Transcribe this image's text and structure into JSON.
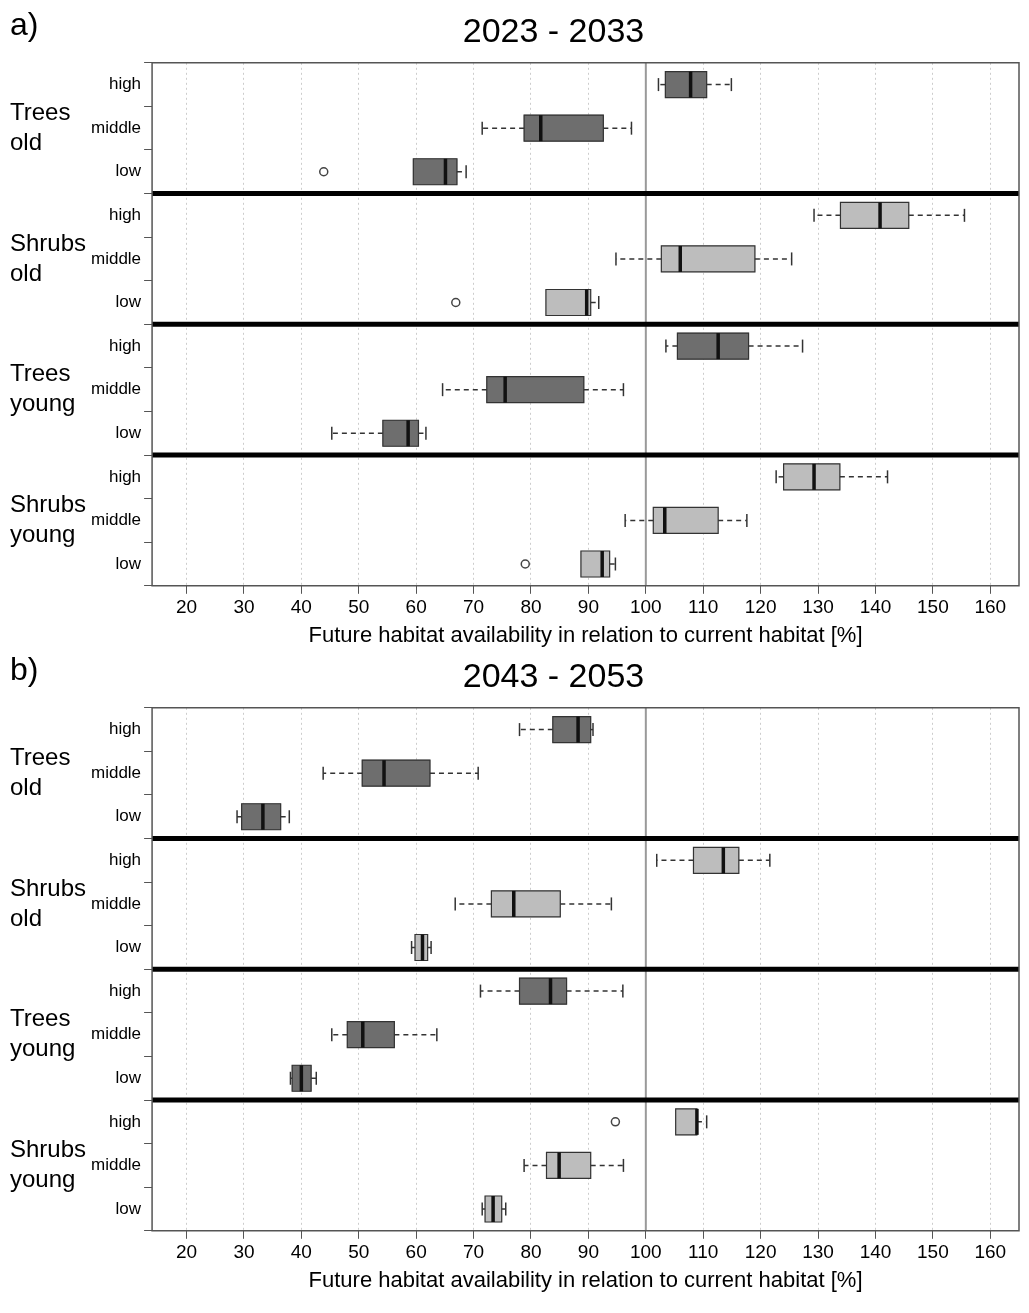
{
  "chart_data": [
    {
      "type": "box",
      "orientation": "horizontal",
      "title": "2023 - 2033",
      "xlabel": "Future habitat availability in relation to current habitat [%]",
      "annotations": [
        "a)",
        "Trees old",
        "Shrubs old",
        "Trees young",
        "Shrubs young"
      ],
      "categories": [
        "high",
        "middle",
        "low",
        "high",
        "middle",
        "low",
        "high",
        "middle",
        "low",
        "high",
        "middle",
        "low"
      ],
      "xlim": [
        14,
        165
      ],
      "xticks": [
        20,
        30,
        40,
        50,
        60,
        70,
        80,
        90,
        100,
        110,
        120,
        130,
        140,
        150,
        160
      ],
      "grid": "x",
      "legend": false,
      "ref_lines": [
        {
          "axis": "x",
          "value": 100,
          "color": "#999999"
        }
      ],
      "series": [
        {
          "color": "#6e6e6e",
          "boxes": [
            {
              "low": 102.2,
              "q1": 103.4,
              "median": 107.8,
              "q3": 110.6,
              "high": 114.9
            },
            {
              "low": 71.5,
              "q1": 78.8,
              "median": 81.7,
              "q3": 92.6,
              "high": 97.5
            },
            {
              "low": 59.5,
              "q1": 59.5,
              "median": 65.1,
              "q3": 67.1,
              "high": 68.7,
              "outliers": [
                43.9
              ]
            },
            null,
            null,
            null,
            null,
            null,
            null,
            null,
            null,
            null
          ]
        },
        {
          "color": "#bdbdbd",
          "boxes": [
            null,
            null,
            null,
            {
              "low": 129.3,
              "q1": 133.9,
              "median": 140.8,
              "q3": 145.8,
              "high": 155.5
            },
            {
              "low": 94.8,
              "q1": 102.7,
              "median": 106.0,
              "q3": 119.0,
              "high": 125.4
            },
            {
              "low": 82.6,
              "q1": 82.6,
              "median": 89.7,
              "q3": 90.4,
              "high": 91.8,
              "outliers": [
                66.9
              ]
            },
            null,
            null,
            null,
            null,
            null,
            null
          ]
        },
        {
          "color": "#6e6e6e",
          "boxes": [
            null,
            null,
            null,
            null,
            null,
            null,
            {
              "low": 103.5,
              "q1": 105.5,
              "median": 112.6,
              "q3": 117.9,
              "high": 127.3
            },
            {
              "low": 64.6,
              "q1": 72.3,
              "median": 75.5,
              "q3": 89.2,
              "high": 96.1
            },
            {
              "low": 45.3,
              "q1": 54.2,
              "median": 58.6,
              "q3": 60.4,
              "high": 61.7
            },
            null,
            null,
            null
          ]
        },
        {
          "color": "#bdbdbd",
          "boxes": [
            null,
            null,
            null,
            null,
            null,
            null,
            null,
            null,
            null,
            {
              "low": 122.7,
              "q1": 124.0,
              "median": 129.3,
              "q3": 133.8,
              "high": 142.1
            },
            {
              "low": 96.4,
              "q1": 101.3,
              "median": 103.3,
              "q3": 112.6,
              "high": 117.6
            },
            {
              "low": 88.7,
              "q1": 88.7,
              "median": 92.4,
              "q3": 93.7,
              "high": 94.7,
              "outliers": [
                79.0
              ]
            }
          ]
        }
      ]
    },
    {
      "type": "box",
      "orientation": "horizontal",
      "title": "2043 - 2053",
      "xlabel": "Future habitat availability in relation to current habitat [%]",
      "annotations": [
        "b)",
        "Trees old",
        "Shrubs old",
        "Trees young",
        "Shrubs young"
      ],
      "categories": [
        "high",
        "middle",
        "low",
        "high",
        "middle",
        "low",
        "high",
        "middle",
        "low",
        "high",
        "middle",
        "low"
      ],
      "xlim": [
        14,
        165
      ],
      "xticks": [
        20,
        30,
        40,
        50,
        60,
        70,
        80,
        90,
        100,
        110,
        120,
        130,
        140,
        150,
        160
      ],
      "grid": "x",
      "legend": false,
      "ref_lines": [
        {
          "axis": "x",
          "value": 100,
          "color": "#999999"
        }
      ],
      "series": [
        {
          "color": "#6e6e6e",
          "boxes": [
            {
              "low": 78.0,
              "q1": 83.8,
              "median": 88.2,
              "q3": 90.4,
              "high": 90.8
            },
            {
              "low": 43.8,
              "q1": 50.6,
              "median": 54.4,
              "q3": 62.4,
              "high": 70.8
            },
            {
              "low": 28.8,
              "q1": 29.6,
              "median": 33.3,
              "q3": 36.4,
              "high": 37.9
            },
            null,
            null,
            null,
            null,
            null,
            null,
            null,
            null,
            null
          ]
        },
        {
          "color": "#bdbdbd",
          "boxes": [
            null,
            null,
            null,
            {
              "low": 101.9,
              "q1": 108.3,
              "median": 113.5,
              "q3": 116.2,
              "high": 121.6
            },
            {
              "low": 66.8,
              "q1": 73.1,
              "median": 77.0,
              "q3": 85.1,
              "high": 94.0
            },
            {
              "low": 59.2,
              "q1": 59.8,
              "median": 61.1,
              "q3": 62.0,
              "high": 62.6
            },
            null,
            null,
            null,
            null,
            null,
            null
          ]
        },
        {
          "color": "#6e6e6e",
          "boxes": [
            null,
            null,
            null,
            null,
            null,
            null,
            {
              "low": 71.2,
              "q1": 78.0,
              "median": 83.4,
              "q3": 86.2,
              "high": 96.0
            },
            {
              "low": 45.3,
              "q1": 48.0,
              "median": 50.7,
              "q3": 56.2,
              "high": 63.6
            },
            {
              "low": 38.1,
              "q1": 38.4,
              "median": 40.0,
              "q3": 41.7,
              "high": 42.6
            },
            null,
            null,
            null
          ]
        },
        {
          "color": "#bdbdbd",
          "boxes": [
            null,
            null,
            null,
            null,
            null,
            null,
            null,
            null,
            null,
            {
              "low": 105.2,
              "q1": 105.2,
              "median": 108.9,
              "q3": 108.9,
              "high": 110.6,
              "outliers": [
                94.7
              ]
            },
            {
              "low": 78.8,
              "q1": 82.7,
              "median": 84.9,
              "q3": 90.4,
              "high": 96.1
            },
            {
              "low": 71.5,
              "q1": 72.0,
              "median": 73.4,
              "q3": 74.9,
              "high": 75.6
            }
          ]
        }
      ]
    }
  ]
}
